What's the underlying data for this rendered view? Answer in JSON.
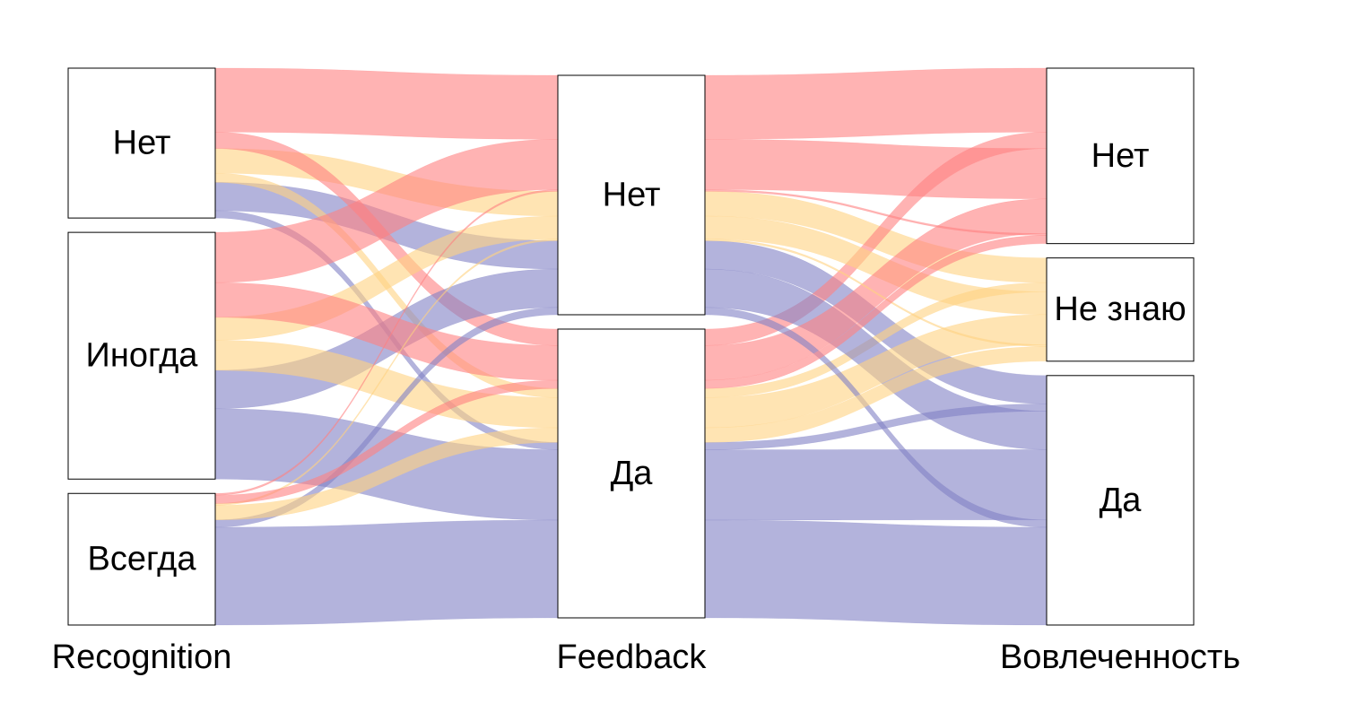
{
  "chart_data": {
    "type": "alluvial",
    "title": "",
    "axes": [
      {
        "name": "Recognition",
        "categories": [
          "Нет",
          "Иногда",
          "Всегда"
        ]
      },
      {
        "name": "Feedback",
        "categories": [
          "Нет",
          "Да"
        ]
      },
      {
        "name": "Вовлеченность",
        "categories": [
          "Нет",
          "Не знаю",
          "Да"
        ]
      }
    ],
    "fill_variable": "Вовлеченность",
    "fill_colors": {
      "Нет": "#ff8080",
      "Не знаю": "#ffd280",
      "Да": "#8080c4"
    },
    "flows": [
      {
        "Recognition": "Нет",
        "Feedback": "Нет",
        "Вовлеченность": "Нет",
        "value": 70
      },
      {
        "Recognition": "Нет",
        "Feedback": "Нет",
        "Вовлеченность": "Не знаю",
        "value": 27
      },
      {
        "Recognition": "Нет",
        "Feedback": "Нет",
        "Вовлеченность": "Да",
        "value": 31
      },
      {
        "Recognition": "Нет",
        "Feedback": "Да",
        "Вовлеченность": "Нет",
        "value": 18
      },
      {
        "Recognition": "Нет",
        "Feedback": "Да",
        "Вовлеченность": "Не знаю",
        "value": 10
      },
      {
        "Recognition": "Нет",
        "Feedback": "Да",
        "Вовлеченность": "Да",
        "value": 8
      },
      {
        "Recognition": "Иногда",
        "Feedback": "Нет",
        "Вовлеченность": "Нет",
        "value": 55
      },
      {
        "Recognition": "Иногда",
        "Feedback": "Нет",
        "Вовлеченность": "Не знаю",
        "value": 25
      },
      {
        "Recognition": "Иногда",
        "Feedback": "Нет",
        "Вовлеченность": "Да",
        "value": 42
      },
      {
        "Recognition": "Иногда",
        "Feedback": "Да",
        "Вовлеченность": "Нет",
        "value": 38
      },
      {
        "Recognition": "Иногда",
        "Feedback": "Да",
        "Вовлеченность": "Не знаю",
        "value": 33
      },
      {
        "Recognition": "Иногда",
        "Feedback": "Да",
        "Вовлеченность": "Да",
        "value": 77
      },
      {
        "Recognition": "Всегда",
        "Feedback": "Нет",
        "Вовлеченность": "Нет",
        "value": 2
      },
      {
        "Recognition": "Всегда",
        "Feedback": "Нет",
        "Вовлеченность": "Не знаю",
        "value": 2
      },
      {
        "Recognition": "Всегда",
        "Feedback": "Нет",
        "Вовлеченность": "Да",
        "value": 8
      },
      {
        "Recognition": "Всегда",
        "Feedback": "Да",
        "Вовлеченность": "Нет",
        "value": 9
      },
      {
        "Recognition": "Всегда",
        "Feedback": "Да",
        "Вовлеченность": "Не знаю",
        "value": 16
      },
      {
        "Recognition": "Всегда",
        "Feedback": "Да",
        "Вовлеченность": "Да",
        "value": 107
      }
    ]
  }
}
